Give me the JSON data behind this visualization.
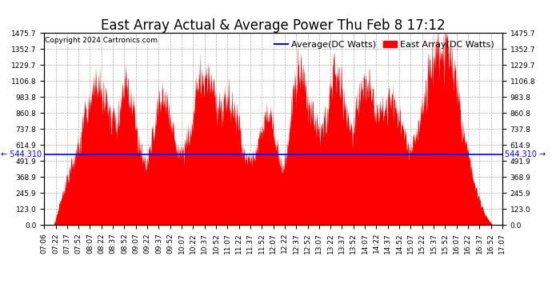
{
  "title": "East Array Actual & Average Power Thu Feb 8 17:12",
  "copyright": "Copyright 2024 Cartronics.com",
  "average_label": "Average(DC Watts)",
  "east_array_label": "East Array(DC Watts)",
  "average_value": 544.31,
  "ymax": 1475.7,
  "ymin": 0.0,
  "yticks": [
    0.0,
    123.0,
    245.9,
    368.9,
    491.9,
    614.9,
    737.8,
    860.8,
    983.8,
    1106.8,
    1229.7,
    1352.7,
    1475.7
  ],
  "avg_color": "blue",
  "east_color": "red",
  "background_color": "#ffffff",
  "grid_color": "#999999",
  "title_fontsize": 12,
  "legend_fontsize": 8,
  "copyright_fontsize": 6.5,
  "tick_fontsize": 6.5,
  "xtick_labels": [
    "07:06",
    "07:22",
    "07:37",
    "07:52",
    "08:07",
    "08:22",
    "08:37",
    "08:52",
    "09:07",
    "09:22",
    "09:37",
    "09:52",
    "10:07",
    "10:22",
    "10:37",
    "10:52",
    "11:07",
    "11:22",
    "11:37",
    "11:52",
    "12:07",
    "12:22",
    "12:37",
    "12:52",
    "13:07",
    "13:22",
    "13:37",
    "13:52",
    "14:07",
    "14:22",
    "14:37",
    "14:52",
    "15:07",
    "15:22",
    "15:37",
    "15:52",
    "16:07",
    "16:22",
    "16:37",
    "16:52",
    "17:07"
  ],
  "n_points": 2000
}
